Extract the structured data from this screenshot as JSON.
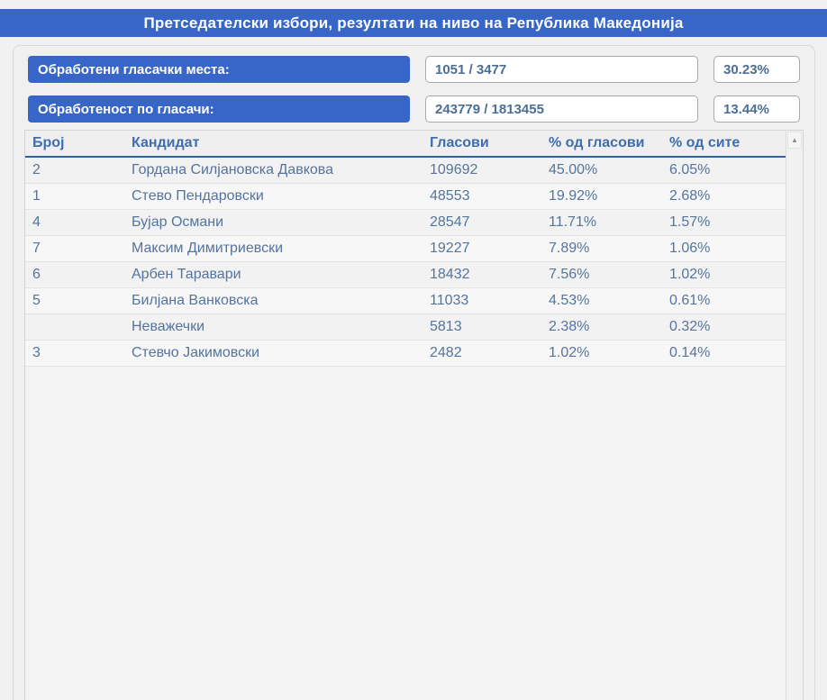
{
  "title": "Претседателски избори, резултати на ниво на Република Македонија",
  "colors": {
    "accent_blue": "#3866c8",
    "header_text": "#3f6dad",
    "cell_text": "#54749f",
    "header_rule": "#2e5fa3",
    "background": "#f1f1f1"
  },
  "stats": [
    {
      "label": "Обработени гласачки места:",
      "value": "1051 / 3477",
      "percent": "30.23%"
    },
    {
      "label": "Обработеност по гласачи:",
      "value": "243779 / 1813455",
      "percent": "13.44%"
    }
  ],
  "table": {
    "columns": [
      "Број",
      "Кандидат",
      "Гласови",
      "% од гласови",
      "% од сите"
    ],
    "rows": [
      {
        "num": "2",
        "name": "Гордана Силјановска Давкова",
        "votes": "109692",
        "pct_votes": "45.00%",
        "pct_all": "6.05%"
      },
      {
        "num": "1",
        "name": "Стево Пендаровски",
        "votes": "48553",
        "pct_votes": "19.92%",
        "pct_all": "2.68%"
      },
      {
        "num": "4",
        "name": "Бујар Османи",
        "votes": "28547",
        "pct_votes": "11.71%",
        "pct_all": "1.57%"
      },
      {
        "num": "7",
        "name": "Максим Димитриевски",
        "votes": "19227",
        "pct_votes": "7.89%",
        "pct_all": "1.06%"
      },
      {
        "num": "6",
        "name": "Арбен Таравари",
        "votes": "18432",
        "pct_votes": "7.56%",
        "pct_all": "1.02%"
      },
      {
        "num": "5",
        "name": "Билјана Ванковска",
        "votes": "11033",
        "pct_votes": "4.53%",
        "pct_all": "0.61%"
      },
      {
        "num": "",
        "name": "Неважечки",
        "votes": "5813",
        "pct_votes": "2.38%",
        "pct_all": "0.32%"
      },
      {
        "num": "3",
        "name": "Стевчо Јакимовски",
        "votes": "2482",
        "pct_votes": "1.02%",
        "pct_all": "0.14%"
      }
    ]
  },
  "scrollbar": {
    "up_arrow": "▲"
  }
}
